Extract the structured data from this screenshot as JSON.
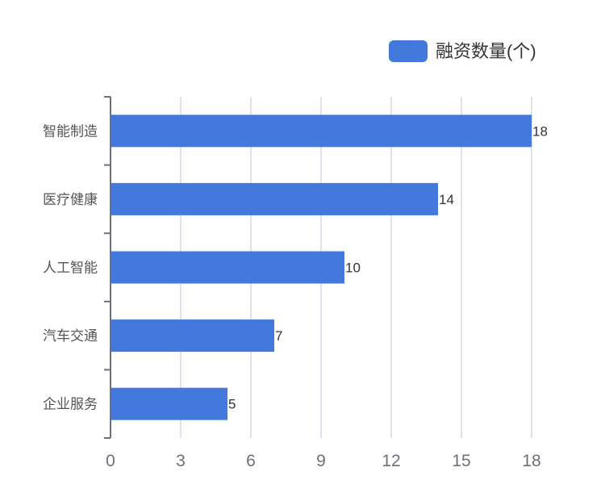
{
  "chart_data": {
    "type": "bar",
    "orientation": "horizontal",
    "categories": [
      "智能制造",
      "医疗健康",
      "人工智能",
      "汽车交通",
      "企业服务"
    ],
    "series": [
      {
        "name": "融资数量(个)",
        "values": [
          18,
          14,
          10,
          7,
          5
        ],
        "color": "#4379dd"
      }
    ],
    "x_ticks": [
      0,
      3,
      6,
      9,
      12,
      15,
      18
    ],
    "xlim": [
      0,
      18
    ],
    "grid": true,
    "legend": "top-right",
    "data_labels": true
  }
}
